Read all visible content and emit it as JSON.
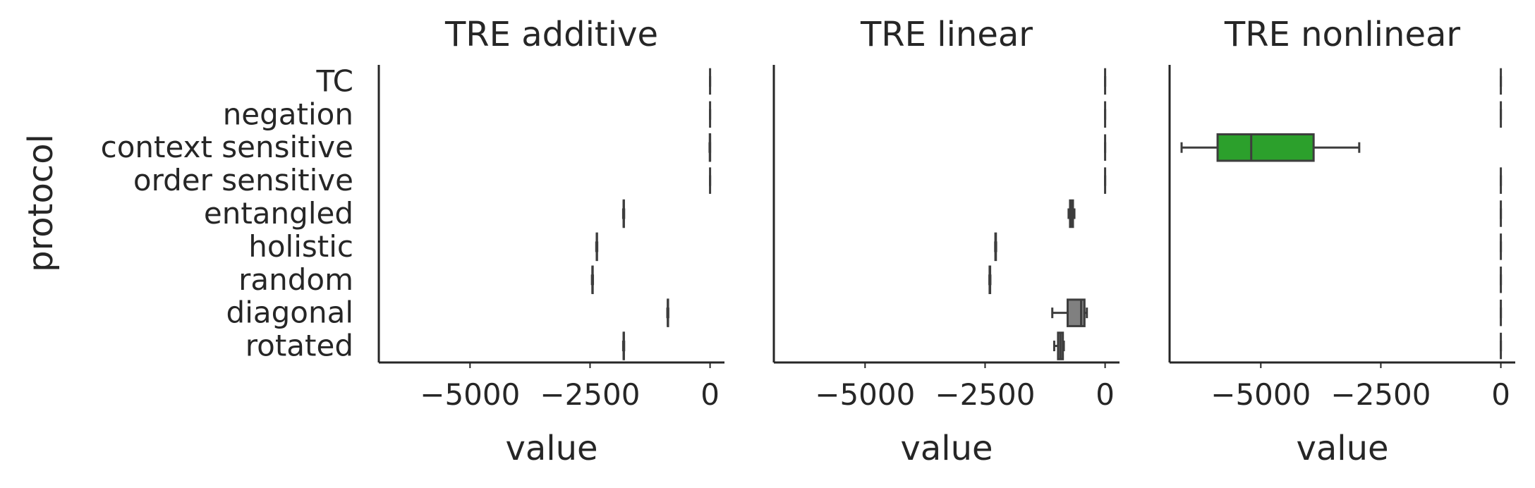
{
  "chart_data": {
    "type": "boxplot",
    "ylabel": "protocol",
    "categories": [
      "TC",
      "negation",
      "context sensitive",
      "order sensitive",
      "entangled",
      "holistic",
      "random",
      "diagonal",
      "rotated"
    ],
    "xlim": [
      -6900,
      300
    ],
    "xticks": [
      -5000,
      -2500,
      0
    ],
    "xtick_labels": [
      "−5000",
      "−2500",
      "0"
    ],
    "panels": [
      {
        "title": "TRE additive",
        "xlabel": "value",
        "boxes": [
          {
            "category": "TC",
            "whislo": 0,
            "q1": 0,
            "med": 0,
            "q3": 0,
            "whishi": 0
          },
          {
            "category": "negation",
            "whislo": 0,
            "q1": 0,
            "med": 0,
            "q3": 0,
            "whishi": 0
          },
          {
            "category": "context sensitive",
            "whislo": -10,
            "q1": -5,
            "med": 0,
            "q3": 0,
            "whishi": 0
          },
          {
            "category": "order sensitive",
            "whislo": 0,
            "q1": 0,
            "med": 0,
            "q3": 0,
            "whishi": 0
          },
          {
            "category": "entangled",
            "whislo": -1810,
            "q1": -1800,
            "med": -1800,
            "q3": -1795,
            "whishi": -1790
          },
          {
            "category": "holistic",
            "whislo": -2370,
            "q1": -2360,
            "med": -2360,
            "q3": -2355,
            "whishi": -2350
          },
          {
            "category": "random",
            "whislo": -2460,
            "q1": -2450,
            "med": -2450,
            "q3": -2445,
            "whishi": -2440
          },
          {
            "category": "diagonal",
            "whislo": -890,
            "q1": -880,
            "med": -880,
            "q3": -875,
            "whishi": -870
          },
          {
            "category": "rotated",
            "whislo": -1810,
            "q1": -1800,
            "med": -1800,
            "q3": -1795,
            "whishi": -1790
          }
        ]
      },
      {
        "title": "TRE linear",
        "xlabel": "value",
        "boxes": [
          {
            "category": "TC",
            "whislo": 0,
            "q1": 0,
            "med": 0,
            "q3": 0,
            "whishi": 0
          },
          {
            "category": "negation",
            "whislo": 0,
            "q1": 0,
            "med": 0,
            "q3": 0,
            "whishi": 0
          },
          {
            "category": "context sensitive",
            "whislo": 0,
            "q1": 0,
            "med": 0,
            "q3": 0,
            "whishi": 0
          },
          {
            "category": "order sensitive",
            "whislo": 0,
            "q1": 0,
            "med": 0,
            "q3": 0,
            "whishi": 0
          },
          {
            "category": "entangled",
            "whislo": -760,
            "q1": -730,
            "med": -700,
            "q3": -670,
            "whishi": -640
          },
          {
            "category": "holistic",
            "whislo": -2290,
            "q1": -2285,
            "med": -2280,
            "q3": -2275,
            "whishi": -2270
          },
          {
            "category": "random",
            "whislo": -2410,
            "q1": -2405,
            "med": -2400,
            "q3": -2395,
            "whishi": -2390
          },
          {
            "category": "diagonal",
            "whislo": -1100,
            "q1": -780,
            "med": -500,
            "q3": -430,
            "whishi": -380
          },
          {
            "category": "rotated",
            "whislo": -1060,
            "q1": -980,
            "med": -930,
            "q3": -880,
            "whishi": -860
          }
        ],
        "box_color": "#808080"
      },
      {
        "title": "TRE nonlinear",
        "xlabel": "value",
        "boxes": [
          {
            "category": "TC",
            "whislo": 0,
            "q1": 0,
            "med": 0,
            "q3": 0,
            "whishi": 0
          },
          {
            "category": "negation",
            "whislo": 0,
            "q1": 0,
            "med": 0,
            "q3": 0,
            "whishi": 0
          },
          {
            "category": "context sensitive",
            "whislo": -6650,
            "q1": -5900,
            "med": -5200,
            "q3": -3900,
            "whishi": -2950
          },
          {
            "category": "order sensitive",
            "whislo": 0,
            "q1": 0,
            "med": 0,
            "q3": 0,
            "whishi": 0
          },
          {
            "category": "entangled",
            "whislo": 0,
            "q1": 0,
            "med": 0,
            "q3": 0,
            "whishi": 0
          },
          {
            "category": "holistic",
            "whislo": 0,
            "q1": 0,
            "med": 0,
            "q3": 0,
            "whishi": 0
          },
          {
            "category": "random",
            "whislo": 0,
            "q1": 0,
            "med": 0,
            "q3": 0,
            "whishi": 0
          },
          {
            "category": "diagonal",
            "whislo": 0,
            "q1": 0,
            "med": 0,
            "q3": 0,
            "whishi": 0
          },
          {
            "category": "rotated",
            "whislo": 0,
            "q1": 0,
            "med": 0,
            "q3": 0,
            "whishi": 0
          }
        ],
        "box_color": "#2ca02c"
      }
    ],
    "grid": false,
    "colors": {
      "text": "#262626",
      "axis": "#262626",
      "box_edge": "#3d3d3d",
      "linear_box": "#808080",
      "nonlinear_box": "#2ca02c"
    }
  }
}
